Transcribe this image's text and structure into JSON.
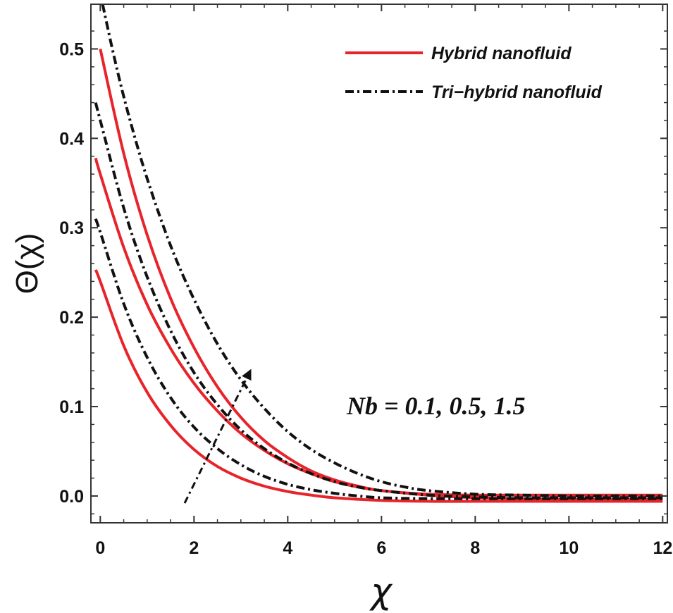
{
  "chart_data": {
    "type": "line",
    "title": "",
    "xlabel": "χ",
    "ylabel": "Θ(χ)",
    "xlim": [
      -0.2,
      12.1
    ],
    "ylim": [
      -0.03,
      0.55
    ],
    "x_ticks": [
      0,
      2,
      4,
      6,
      8,
      10,
      12
    ],
    "x_tick_labels": [
      "0",
      "2",
      "4",
      "6",
      "8",
      "10",
      "12"
    ],
    "y_ticks": [
      0.0,
      0.1,
      0.2,
      0.3,
      0.4,
      0.5
    ],
    "y_tick_labels": [
      "0.0",
      "0.1",
      "0.2",
      "0.3",
      "0.4",
      "0.5"
    ],
    "grid": false,
    "legend": {
      "placement": "top-right",
      "entries": [
        {
          "label": "Hybrid nanofluid",
          "style": "solid",
          "color": "#e8242b"
        },
        {
          "label": "Tri−hybrid nanofluid",
          "style": "dashdot",
          "color": "#111111"
        }
      ]
    },
    "annotation": {
      "text": "Nb = 0.1,  0.5, 1.5",
      "arrow_from": [
        1.8,
        -0.008
      ],
      "arrow_to": [
        3.2,
        0.14
      ]
    },
    "series": [
      {
        "name": "Hybrid nanofluid, Nb = 0.1",
        "group": "Hybrid nanofluid",
        "style": "solid",
        "color": "#e8242b",
        "x": [
          -0.1,
          0,
          0.5,
          1,
          1.5,
          2,
          2.5,
          3,
          3.5,
          4,
          4.5,
          5,
          6,
          7,
          8,
          9,
          10,
          11,
          12
        ],
        "y": [
          0.253,
          0.24,
          0.168,
          0.116,
          0.079,
          0.052,
          0.033,
          0.02,
          0.011,
          0.005,
          0.001,
          -0.002,
          -0.005,
          -0.006,
          -0.006,
          -0.006,
          -0.006,
          -0.006,
          -0.006
        ]
      },
      {
        "name": "Hybrid nanofluid, Nb = 0.5",
        "group": "Hybrid nanofluid",
        "style": "solid",
        "color": "#e8242b",
        "x": [
          -0.1,
          0,
          0.5,
          1,
          1.5,
          2,
          2.5,
          3,
          3.5,
          4,
          4.5,
          5,
          5.5,
          6,
          7,
          8,
          9,
          10,
          11,
          12
        ],
        "y": [
          0.378,
          0.36,
          0.278,
          0.214,
          0.165,
          0.126,
          0.095,
          0.07,
          0.051,
          0.036,
          0.025,
          0.016,
          0.01,
          0.006,
          0.001,
          -0.002,
          -0.003,
          -0.004,
          -0.004,
          -0.004
        ]
      },
      {
        "name": "Hybrid nanofluid, Nb = 1.5",
        "group": "Hybrid nanofluid",
        "style": "solid",
        "color": "#e8242b",
        "x": [
          0,
          0.5,
          1,
          1.5,
          2,
          2.5,
          3,
          3.5,
          4,
          4.5,
          5,
          5.5,
          6,
          7,
          8,
          9,
          10,
          11,
          12
        ],
        "y": [
          0.5,
          0.383,
          0.292,
          0.221,
          0.166,
          0.122,
          0.088,
          0.062,
          0.043,
          0.028,
          0.018,
          0.011,
          0.006,
          0.002,
          0.001,
          0.001,
          0.001,
          0.001,
          0.001
        ]
      },
      {
        "name": "Tri-hybrid nanofluid, Nb = 0.1",
        "group": "Tri−hybrid nanofluid",
        "style": "dashdot",
        "color": "#111111",
        "x": [
          -0.1,
          0,
          0.5,
          1,
          1.5,
          2,
          2.5,
          3,
          3.5,
          4,
          4.5,
          5,
          5.5,
          6,
          7,
          8,
          9,
          10,
          11,
          12
        ],
        "y": [
          0.31,
          0.295,
          0.215,
          0.155,
          0.11,
          0.077,
          0.053,
          0.035,
          0.022,
          0.013,
          0.007,
          0.003,
          0.0,
          -0.002,
          -0.003,
          -0.003,
          -0.003,
          -0.003,
          -0.003,
          -0.003
        ]
      },
      {
        "name": "Tri-hybrid nanofluid, Nb = 0.5",
        "group": "Tri−hybrid nanofluid",
        "style": "dashdot",
        "color": "#111111",
        "x": [
          -0.1,
          0,
          0.5,
          1,
          1.5,
          2,
          2.5,
          3,
          3.5,
          4,
          4.5,
          5,
          5.5,
          6,
          7,
          8,
          9,
          10,
          11,
          12
        ],
        "y": [
          0.44,
          0.42,
          0.322,
          0.245,
          0.185,
          0.138,
          0.102,
          0.074,
          0.053,
          0.037,
          0.025,
          0.016,
          0.01,
          0.006,
          0.001,
          -0.001,
          -0.002,
          -0.002,
          -0.002,
          -0.002
        ]
      },
      {
        "name": "Tri-hybrid nanofluid, Nb = 1.5",
        "group": "Tri−hybrid nanofluid",
        "style": "dashdot",
        "color": "#111111",
        "x": [
          0.05,
          0.3,
          0.6,
          1,
          1.5,
          2,
          2.5,
          3,
          3.5,
          4,
          4.5,
          5,
          5.5,
          6,
          6.5,
          7,
          8,
          9,
          10,
          11,
          12
        ],
        "y": [
          0.55,
          0.49,
          0.427,
          0.355,
          0.28,
          0.22,
          0.17,
          0.13,
          0.098,
          0.072,
          0.052,
          0.037,
          0.025,
          0.016,
          0.01,
          0.006,
          0.002,
          0.001,
          0.0,
          0.0,
          0.0
        ]
      }
    ]
  }
}
